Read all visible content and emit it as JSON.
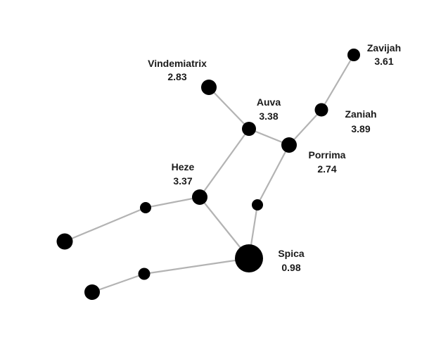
{
  "colors": {
    "background": "#ffffff",
    "star": "#000000",
    "line": "#b3b3b3",
    "text": "#1a1a1a"
  },
  "stars": [
    {
      "id": "zavijah",
      "name": "Zavijah",
      "magnitude": "3.61"
    },
    {
      "id": "zaniah",
      "name": "Zaniah",
      "magnitude": "3.89"
    },
    {
      "id": "porrima",
      "name": "Porrima",
      "magnitude": "2.74"
    },
    {
      "id": "auva",
      "name": "Auva",
      "magnitude": "3.38"
    },
    {
      "id": "vindemiatrix",
      "name": "Vindemiatrix",
      "magnitude": "2.83"
    },
    {
      "id": "heze",
      "name": "Heze",
      "magnitude": "3.37"
    },
    {
      "id": "spica",
      "name": "Spica",
      "magnitude": "0.98"
    },
    {
      "id": "star-a",
      "name": "",
      "magnitude": ""
    },
    {
      "id": "star-b",
      "name": "",
      "magnitude": ""
    },
    {
      "id": "star-c",
      "name": "",
      "magnitude": ""
    },
    {
      "id": "star-d",
      "name": "",
      "magnitude": ""
    },
    {
      "id": "star-e",
      "name": "",
      "magnitude": ""
    }
  ],
  "connections": [
    [
      "zavijah",
      "zaniah"
    ],
    [
      "zaniah",
      "porrima"
    ],
    [
      "porrima",
      "auva"
    ],
    [
      "auva",
      "vindemiatrix"
    ],
    [
      "auva",
      "heze"
    ],
    [
      "porrima",
      "star-a"
    ],
    [
      "star-a",
      "spica"
    ],
    [
      "heze",
      "spica"
    ],
    [
      "heze",
      "star-b"
    ],
    [
      "star-b",
      "star-c"
    ],
    [
      "spica",
      "star-d"
    ],
    [
      "star-d",
      "star-e"
    ]
  ]
}
